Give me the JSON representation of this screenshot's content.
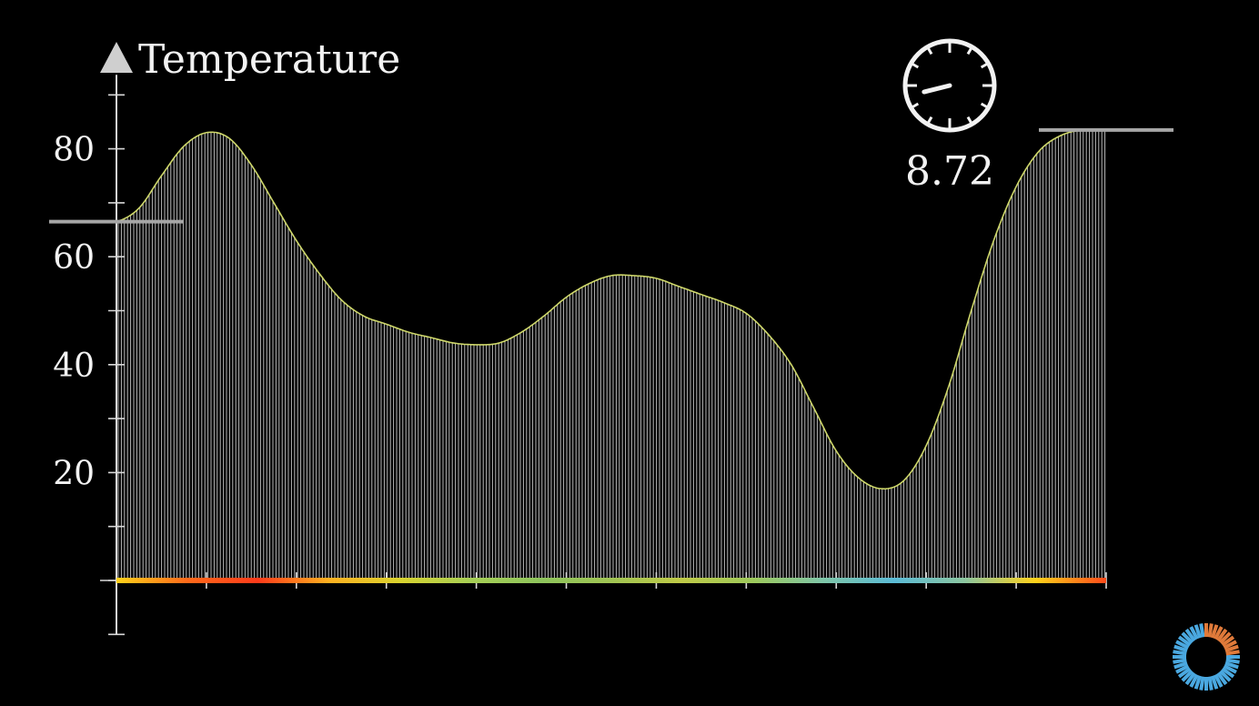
{
  "chart_data": {
    "type": "area",
    "ylabel": "Temperature",
    "ylim": [
      -10,
      90
    ],
    "xlim": [
      0,
      11
    ],
    "yticks": [
      80,
      60,
      40,
      20
    ],
    "minor_yticks": [
      -10,
      0,
      10,
      30,
      50,
      70,
      90
    ],
    "xticks": [
      1,
      2,
      3,
      4,
      5,
      6,
      7,
      8,
      9,
      10,
      11
    ],
    "grid": false,
    "curve": {
      "x": [
        0,
        0.25,
        0.5,
        0.75,
        1.0,
        1.25,
        1.5,
        1.75,
        2.0,
        2.25,
        2.5,
        2.75,
        3.0,
        3.25,
        3.5,
        3.75,
        4.0,
        4.25,
        4.5,
        4.75,
        5.0,
        5.25,
        5.5,
        5.75,
        6.0,
        6.25,
        6.5,
        6.75,
        7.0,
        7.25,
        7.5,
        7.75,
        8.0,
        8.25,
        8.5,
        8.75,
        9.0,
        9.25,
        9.5,
        9.75,
        10.0,
        10.25,
        10.5,
        10.75,
        11.0
      ],
      "y": [
        66.5,
        69,
        75,
        80.5,
        83,
        82,
        77,
        70,
        63,
        57,
        52,
        49,
        47.5,
        46,
        45,
        44,
        43.7,
        44,
        46,
        49,
        52.5,
        55,
        56.5,
        56.5,
        56,
        54.5,
        53,
        51.5,
        49.5,
        45.5,
        40,
        32,
        24,
        19,
        17,
        18.5,
        25,
        36,
        50,
        63,
        73,
        79.5,
        82.5,
        83.5,
        83.5
      ]
    },
    "markers": [
      {
        "name": "start-level",
        "value": 66.5
      },
      {
        "name": "end-level",
        "value": 83.5
      }
    ],
    "colorbar_colors": [
      "#ffd21a",
      "#ff6a1a",
      "#ff3a1a",
      "#ffb020",
      "#d9d32e",
      "#a7cf55",
      "#8ec45c",
      "#a0c453",
      "#bfca47",
      "#9dc95b",
      "#7fc6a8",
      "#5bbbd6",
      "#8cc6a0",
      "#ffd21a",
      "#ff4a1a"
    ]
  },
  "clock": {
    "time_value": "8.72",
    "hand_angle_deg": 76
  },
  "colors": {
    "background": "#000000",
    "axis": "#d8d8d8",
    "fill_lines": "#d9d9d9",
    "marker": "#a6a6a6",
    "text": "#f2f2f2"
  },
  "widget": {
    "icon": "spinner-icon",
    "colors": [
      "#e07a3a",
      "#4aa8e0"
    ]
  }
}
